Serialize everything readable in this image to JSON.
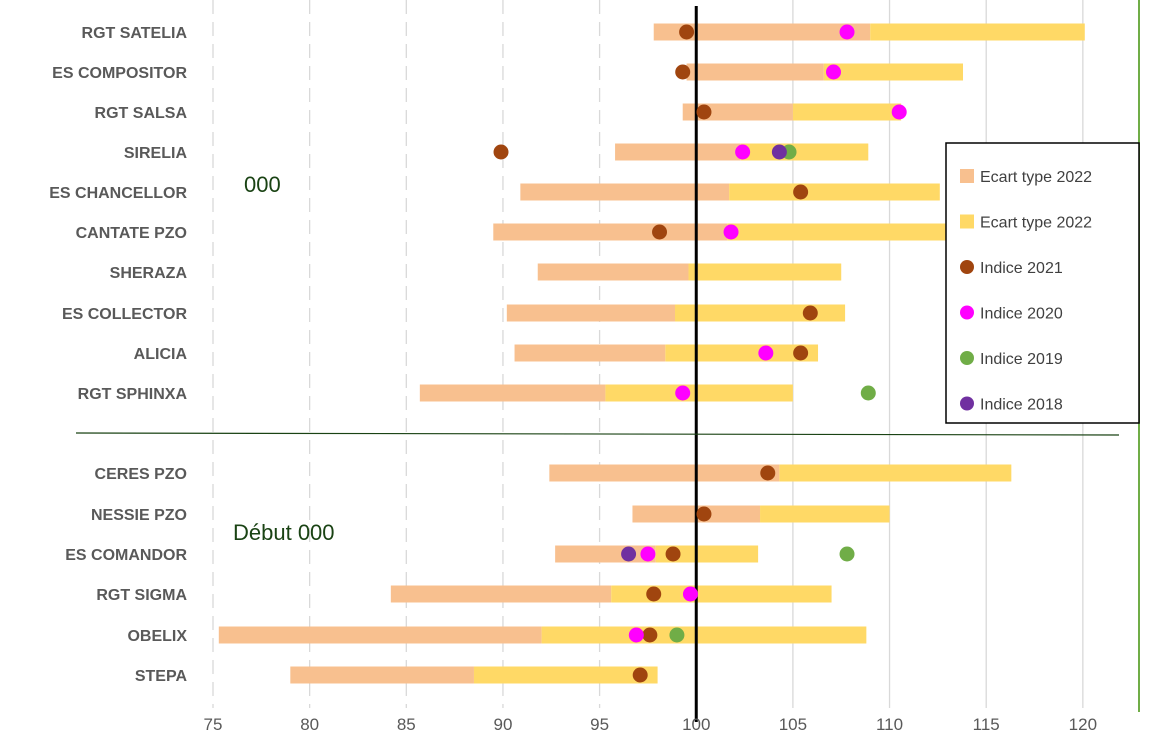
{
  "chart_data": {
    "type": "bar",
    "xlim": [
      75,
      122
    ],
    "x_ticks": [
      75,
      80,
      85,
      90,
      95,
      100,
      105,
      110,
      115,
      120
    ],
    "reference_line": 100,
    "group_labels": [
      "000",
      "Début 000"
    ],
    "legend_position": "right",
    "colors": {
      "lower_bar": "#f8c08f",
      "upper_bar": "#ffd966",
      "indice_2021": "#a0450f",
      "indice_2020": "#ff00ff",
      "indice_2019": "#70ad47",
      "indice_2018": "#7030a0",
      "reference_line": "#000000",
      "separator": "#1a4314",
      "frame_right": "#70ad47",
      "grid": "#d9d9d9"
    },
    "series": [
      {
        "name": "Ecart type 2022",
        "kind": "bar-lower",
        "color": "#f8c08f"
      },
      {
        "name": "Ecart type 2022",
        "kind": "bar-upper",
        "color": "#ffd966"
      },
      {
        "name": "Indice 2021",
        "kind": "point",
        "color": "#a0450f"
      },
      {
        "name": "Indice 2020",
        "kind": "point",
        "color": "#ff00ff"
      },
      {
        "name": "Indice 2019",
        "kind": "point",
        "color": "#70ad47"
      },
      {
        "name": "Indice 2018",
        "kind": "point",
        "color": "#7030a0"
      }
    ],
    "categories": [
      {
        "name": "RGT SATELIA",
        "group": 0,
        "low": 97.8,
        "mid": 109.0,
        "high": 120.1,
        "i2021": 99.5,
        "i2020": 107.8,
        "i2019": null,
        "i2018": null
      },
      {
        "name": "ES COMPOSITOR",
        "group": 0,
        "low": 99.5,
        "mid": 106.6,
        "high": 113.8,
        "i2021": 99.3,
        "i2020": 107.1,
        "i2019": null,
        "i2018": null
      },
      {
        "name": "RGT SALSA",
        "group": 0,
        "low": 99.3,
        "mid": 105.0,
        "high": 110.6,
        "i2021": 100.4,
        "i2020": 110.5,
        "i2019": null,
        "i2018": null
      },
      {
        "name": "SIRELIA",
        "group": 0,
        "low": 95.8,
        "mid": 102.3,
        "high": 108.9,
        "i2021": 89.9,
        "i2020": 102.4,
        "i2019": 104.8,
        "i2018": 104.3
      },
      {
        "name": "ES CHANCELLOR",
        "group": 0,
        "low": 90.9,
        "mid": 101.7,
        "high": 112.6,
        "i2021": 105.4,
        "i2020": null,
        "i2019": null,
        "i2018": null
      },
      {
        "name": "CANTATE PZO",
        "group": 0,
        "low": 89.5,
        "mid": 101.6,
        "high": 113.7,
        "i2021": 98.1,
        "i2020": 101.8,
        "i2019": null,
        "i2018": null
      },
      {
        "name": "SHERAZA",
        "group": 0,
        "low": 91.8,
        "mid": 99.6,
        "high": 107.5,
        "i2021": null,
        "i2020": null,
        "i2019": null,
        "i2018": null
      },
      {
        "name": "ES COLLECTOR",
        "group": 0,
        "low": 90.2,
        "mid": 98.9,
        "high": 107.7,
        "i2021": 105.9,
        "i2020": null,
        "i2019": null,
        "i2018": null
      },
      {
        "name": "ALICIA",
        "group": 0,
        "low": 90.6,
        "mid": 98.4,
        "high": 106.3,
        "i2021": 105.4,
        "i2020": 103.6,
        "i2019": null,
        "i2018": null
      },
      {
        "name": "RGT SPHINXA",
        "group": 0,
        "low": 85.7,
        "mid": 95.3,
        "high": 105.0,
        "i2021": null,
        "i2020": 99.3,
        "i2019": 108.9,
        "i2018": null
      },
      {
        "name": "CERES PZO",
        "group": 1,
        "low": 92.4,
        "mid": 104.3,
        "high": 116.3,
        "i2021": 103.7,
        "i2020": null,
        "i2019": null,
        "i2018": null
      },
      {
        "name": "NESSIE PZO",
        "group": 1,
        "low": 96.7,
        "mid": 103.3,
        "high": 110.0,
        "i2021": 100.4,
        "i2020": null,
        "i2019": null,
        "i2018": null
      },
      {
        "name": "ES COMANDOR",
        "group": 1,
        "low": 92.7,
        "mid": 97.9,
        "high": 103.2,
        "i2021": 98.8,
        "i2020": 97.5,
        "i2019": 107.8,
        "i2018": 96.5
      },
      {
        "name": "RGT SIGMA",
        "group": 1,
        "low": 84.2,
        "mid": 95.6,
        "high": 107.0,
        "i2021": 97.8,
        "i2020": 99.7,
        "i2019": null,
        "i2018": null
      },
      {
        "name": "OBELIX",
        "group": 1,
        "low": 75.3,
        "mid": 92.0,
        "high": 108.8,
        "i2021": 97.6,
        "i2020": 96.9,
        "i2019": 99.0,
        "i2018": null
      },
      {
        "name": "STEPA",
        "group": 1,
        "low": 79.0,
        "mid": 88.5,
        "high": 98.0,
        "i2021": 97.1,
        "i2020": null,
        "i2019": null,
        "i2018": null
      }
    ]
  }
}
